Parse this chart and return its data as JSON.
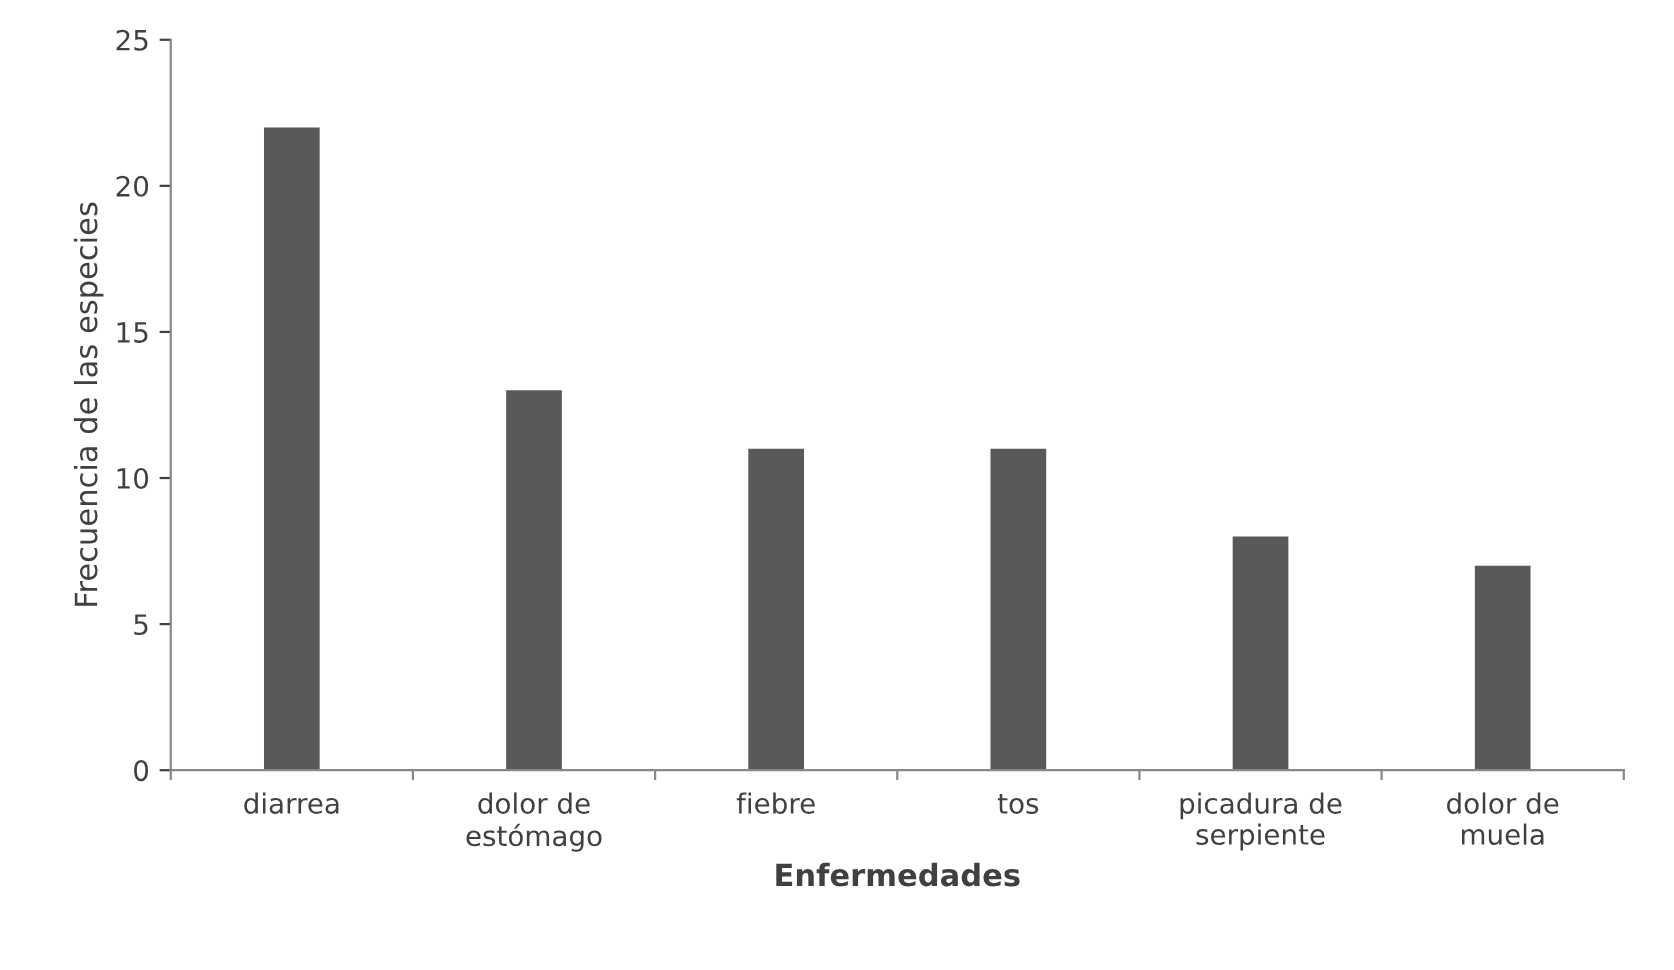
{
  "chart_data": {
    "type": "bar",
    "xlabel": "Enfermedades",
    "ylabel": "Frecuencia de las especies",
    "categories": [
      "diarrea",
      "dolor de estómago",
      "fiebre",
      "tos",
      "picadura de serpiente",
      "dolor de muela"
    ],
    "values": [
      22,
      13,
      11,
      11,
      8,
      7
    ],
    "color": "#595959",
    "ylim": [
      0,
      25
    ],
    "yticks": [
      0,
      5,
      10,
      15,
      20,
      25
    ],
    "grid": false,
    "legend": false
  }
}
